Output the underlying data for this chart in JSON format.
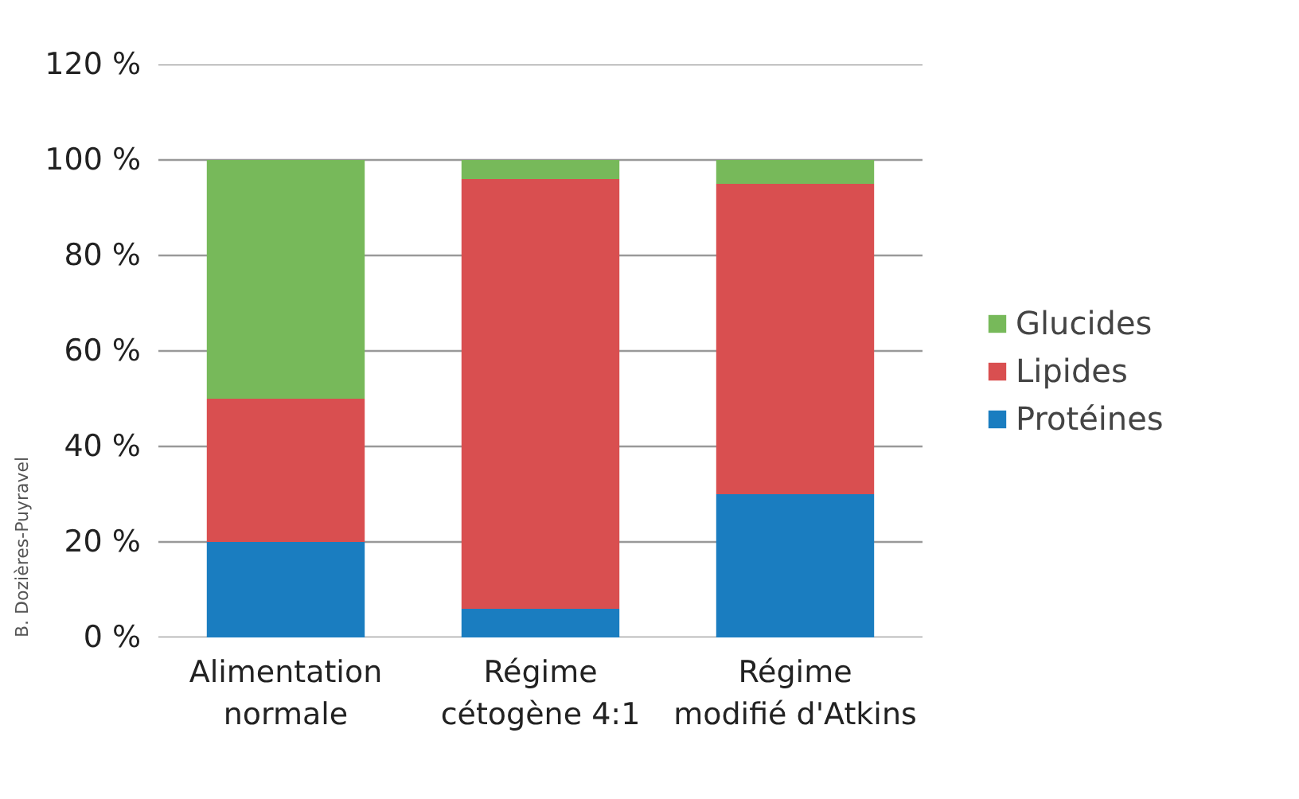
{
  "chart_data": {
    "type": "bar",
    "stacked": true,
    "categories": [
      "Alimentation normale",
      "Régime cétogène 4:1",
      "Régime modifié d'Atkins"
    ],
    "series": [
      {
        "name": "Protéines",
        "color": "#1a7dc0",
        "values": [
          20,
          6,
          30
        ]
      },
      {
        "name": "Lipides",
        "color": "#d94f50",
        "values": [
          30,
          90,
          65
        ]
      },
      {
        "name": "Glucides",
        "color": "#77b95a",
        "values": [
          50,
          4,
          5
        ]
      }
    ],
    "ylim": [
      0,
      120
    ],
    "yticks": [
      {
        "value": 0,
        "label": "0 %"
      },
      {
        "value": 20,
        "label": "20 %"
      },
      {
        "value": 40,
        "label": "40 %"
      },
      {
        "value": 60,
        "label": "60 %"
      },
      {
        "value": 80,
        "label": "80 %"
      },
      {
        "value": 100,
        "label": "100 %"
      },
      {
        "value": 120,
        "label": "120 %"
      }
    ],
    "grid": "y",
    "legend": "right",
    "annotations": [
      "B. Dozières-Puyravel"
    ]
  }
}
